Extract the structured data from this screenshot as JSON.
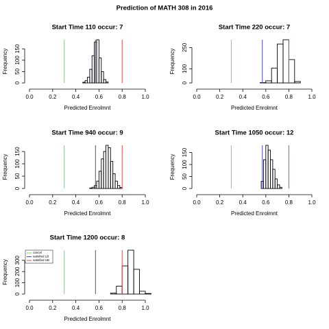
{
  "title": "Prediction of MATH 308 in 2016",
  "chart_data": [
    {
      "type": "histogram",
      "title": "Start Time 110 occur: 7",
      "xlabel": "Predicted Enrolmnt",
      "ylabel": "Frequency",
      "bins": [
        0.46,
        0.48,
        0.5,
        0.52,
        0.54,
        0.56,
        0.58,
        0.6,
        0.62,
        0.64,
        0.66,
        0.68
      ],
      "counts": [
        3,
        10,
        25,
        60,
        120,
        180,
        190,
        110,
        50,
        15,
        4
      ],
      "xlim": [
        0,
        1
      ],
      "ylim": [
        0,
        190
      ],
      "xticks": [
        {
          "value": 0,
          "label": "0.0"
        },
        0.2,
        0.4,
        0.6,
        0.8,
        {
          "value": 1,
          "label": "1.0"
        }
      ],
      "yticks": [
        0,
        50,
        100,
        150
      ],
      "vlines": [
        {
          "value": 0.3,
          "color": "#66dd66"
        },
        {
          "value": 0.57,
          "color": "#4a4ab8"
        },
        {
          "value": 0.8,
          "color": "#dd4a4a"
        }
      ]
    },
    {
      "type": "histogram",
      "title": "Start Time 220 occur: 7",
      "xlabel": "Predicted Enrolmnt",
      "ylabel": "Frequency",
      "bins": [
        0.55,
        0.6,
        0.65,
        0.7,
        0.75,
        0.8,
        0.85,
        0.9
      ],
      "counts": [
        2,
        15,
        105,
        275,
        305,
        165,
        10
      ],
      "xlim": [
        0,
        1
      ],
      "ylim": [
        0,
        305
      ],
      "xticks": [
        {
          "value": 0,
          "label": "0.0"
        },
        0.2,
        0.4,
        0.6,
        0.8,
        {
          "value": 1,
          "label": "1.0"
        }
      ],
      "yticks": [
        0,
        100,
        250
      ],
      "vlines": [
        {
          "value": 0.3,
          "color": "#66dd66"
        },
        {
          "value": 0.57,
          "color": "#4a4ab8"
        },
        {
          "value": 0.8,
          "color": "#dd4a4a"
        }
      ]
    },
    {
      "type": "histogram",
      "title": "Start Time 940 occur: 9",
      "xlabel": "Predicted Enrolmnt",
      "ylabel": "Frequency",
      "bins": [
        0.52,
        0.54,
        0.56,
        0.58,
        0.6,
        0.62,
        0.64,
        0.66,
        0.68,
        0.7,
        0.72,
        0.74,
        0.76,
        0.78,
        0.8
      ],
      "counts": [
        2,
        5,
        12,
        30,
        70,
        120,
        150,
        175,
        165,
        110,
        60,
        30,
        12,
        4
      ],
      "xlim": [
        0,
        1
      ],
      "ylim": [
        0,
        175
      ],
      "xticks": [
        {
          "value": 0,
          "label": "0.0"
        },
        0.2,
        0.4,
        0.6,
        0.8,
        {
          "value": 1,
          "label": "1.0"
        }
      ],
      "yticks": [
        0,
        50,
        100,
        150
      ],
      "vlines": [
        {
          "value": 0.3,
          "color": "#66dd66"
        },
        {
          "value": 0.57,
          "color": "#4a4ab8"
        },
        {
          "value": 0.8,
          "color": "#dd4a4a"
        }
      ]
    },
    {
      "type": "histogram",
      "title": "Start Time 1050 occur: 12",
      "xlabel": "Predicted Enrolmnt",
      "ylabel": "Frequency",
      "bins": [
        0.56,
        0.58,
        0.6,
        0.62,
        0.64,
        0.66,
        0.68,
        0.7,
        0.72,
        0.74
      ],
      "counts": [
        30,
        120,
        180,
        160,
        120,
        80,
        40,
        15,
        5
      ],
      "xlim": [
        0,
        1
      ],
      "ylim": [
        0,
        180
      ],
      "xticks": [
        {
          "value": 0,
          "label": "0.0"
        },
        0.2,
        0.4,
        0.6,
        0.8,
        {
          "value": 1,
          "label": "1.0"
        }
      ],
      "yticks": [
        0,
        50,
        100,
        150
      ],
      "vlines": [
        {
          "value": 0.3,
          "color": "#66dd66"
        },
        {
          "value": 0.57,
          "color": "#4a4ab8"
        },
        {
          "value": 0.8,
          "color": "#dd4a4a"
        }
      ]
    },
    {
      "type": "histogram",
      "title": "Start Time 1200 occur: 8",
      "xlabel": "Predicted Enrolmnt",
      "ylabel": "Frequency",
      "bins": [
        0.7,
        0.75,
        0.8,
        0.85,
        0.9,
        0.95,
        1.0,
        1.05
      ],
      "counts": [
        8,
        70,
        250,
        390,
        220,
        25,
        5
      ],
      "xlim": [
        0,
        1
      ],
      "ylim": [
        0,
        390
      ],
      "xticks": [
        {
          "value": 0,
          "label": "0.0"
        },
        0.2,
        0.4,
        0.6,
        0.8,
        {
          "value": 1,
          "label": "1.0"
        }
      ],
      "yticks": [
        0,
        100,
        200,
        300
      ],
      "vlines": [
        {
          "value": 0.3,
          "color": "#66dd66"
        },
        {
          "value": 0.57,
          "color": "#4a4ab8"
        },
        {
          "value": 0.8,
          "color": "#dd4a4a"
        }
      ],
      "legend": {
        "position": "top-left",
        "entries": [
          "cancel",
          "satisfied LB",
          "satisfied UB"
        ]
      }
    }
  ]
}
